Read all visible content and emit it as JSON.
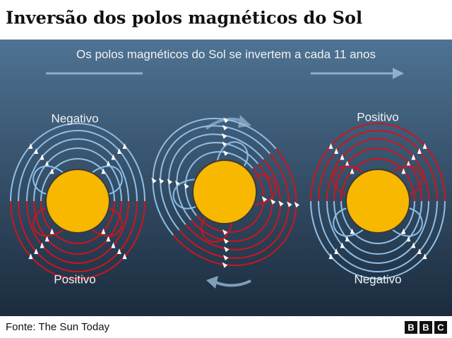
{
  "header": {
    "title": "Inversão dos polos magnéticos do Sol"
  },
  "subtitle": "Os polos magnéticos do Sol se invertem a cada 11 anos",
  "labels": {
    "left_top": "Negativo",
    "left_bottom": "Positivo",
    "right_top": "Positivo",
    "right_bottom": "Negativo"
  },
  "footer": {
    "source": "Fonte: The Sun Today",
    "logo": [
      "B",
      "B",
      "C"
    ]
  }
}
